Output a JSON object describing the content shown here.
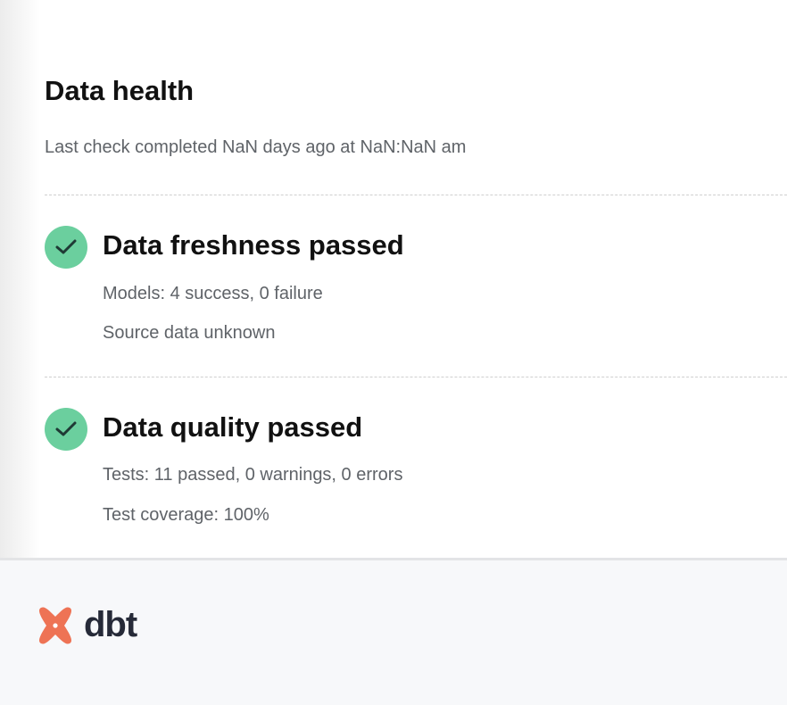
{
  "header": {
    "title": "Data health",
    "subtitle": "Last check completed NaN days ago at NaN:NaN am"
  },
  "sections": [
    {
      "title": "Data freshness passed",
      "status": "passed",
      "icon": "check-circle-icon",
      "lines": [
        "Models: 4 success, 0 failure",
        "Source data unknown"
      ]
    },
    {
      "title": "Data quality passed",
      "status": "passed",
      "icon": "check-circle-icon",
      "lines": [
        "Tests: 11 passed, 0 warnings, 0 errors",
        "Test coverage: 100%"
      ]
    }
  ],
  "footer": {
    "logo_text": "dbt"
  },
  "colors": {
    "success": "#6bcf9e",
    "brand": "#ee7355"
  }
}
